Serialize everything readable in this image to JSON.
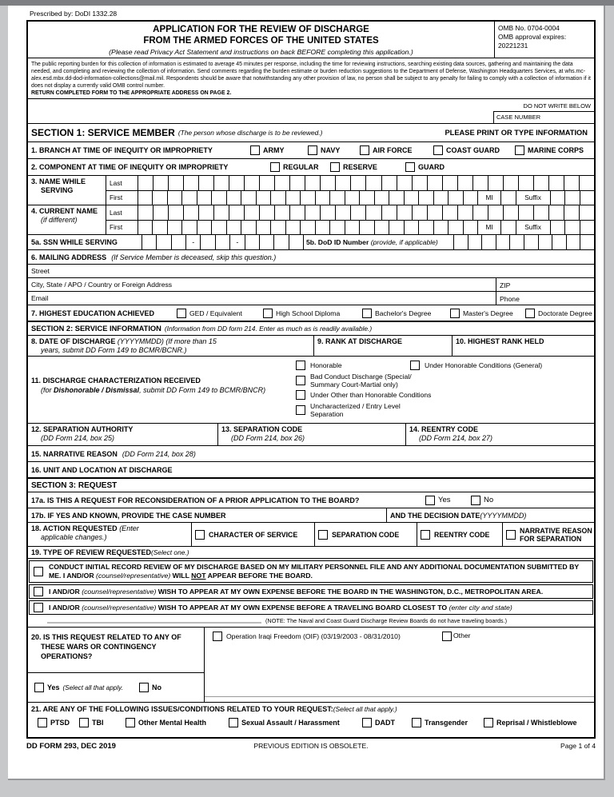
{
  "colors": {
    "border": "#000000",
    "page_bg": "#ffffff",
    "backdrop": "#c7c8ca",
    "topbar": "#7d7f82",
    "blank_line": "#b9bcbe"
  },
  "page": {
    "prescribed_by": "Prescribed by: DoDI 1332.28",
    "do_not_write": "DO NOT WRITE BELOW",
    "case_number_label": "CASE NUMBER",
    "footer": {
      "form_id": "DD FORM 293, DEC 2019",
      "edition": "PREVIOUS EDITION IS OBSOLETE.",
      "page_num": "Page 1 of 4"
    }
  },
  "header": {
    "title1": "APPLICATION FOR THE REVIEW OF DISCHARGE",
    "title2": "FROM THE ARMED FORCES OF THE UNITED STATES",
    "title3": "(Please read Privacy Act Statement and instructions on back BEFORE completing this application.)",
    "omb_no": "OMB No. 0704-0004",
    "omb_expires_label": "OMB approval expires:",
    "omb_expires_value": "20221231"
  },
  "burden": {
    "text": "The public reporting burden for this collection of information is estimated to average 45 minutes per response, including the time for reviewing instructions, searching existing data sources, gathering and maintaining the data needed, and completing and reviewing the collection of information.  Send comments regarding the burden estimate or burden reduction suggestions to the Department of Defense, Washington Headquarters Services, at whs.mc-alex.esd.mbx.dd-dod-information-collections@mail.mil. Respondents should be aware that notwithstanding any other provision of law, no person shall be subject to any penalty for failing to comply with a collection of information if it does not display a currently valid OMB control number.",
    "return_line": "RETURN COMPLETED FORM TO THE APPROPRIATE ADDRESS ON PAGE 2."
  },
  "section1": {
    "title": "SECTION 1: SERVICE MEMBER",
    "subtitle": "(The person whose discharge is to be reviewed.)",
    "print_note": "PLEASE PRINT OR TYPE INFORMATION",
    "q1_label": "1. BRANCH AT TIME OF INEQUITY OR IMPROPRIETY",
    "q1_options": [
      "ARMY",
      "NAVY",
      "AIR FORCE",
      "COAST GUARD",
      "MARINE CORPS"
    ],
    "q2_label": "2. COMPONENT AT TIME OF INEQUITY OR IMPROPRIETY",
    "q2_options": [
      "REGULAR",
      "RESERVE",
      "GUARD"
    ],
    "q3_label1": "3. NAME WHILE",
    "q3_label2": "SERVING",
    "q4_label": "4. CURRENT NAME",
    "q4_sublabel": "(if different)",
    "last_label": "Last",
    "first_label": "First",
    "mi_label": "MI",
    "suffix_label": "Suffix",
    "q5a_label": "5a. SSN WHILE SERVING",
    "ssn_separator": "-",
    "q5b_label": "5b. DoD ID Number",
    "q5b_sublabel": "(provide, if applicable)",
    "q6_label": "6. MAILING ADDRESS",
    "q6_sublabel": "(If Service Member is deceased, skip this question.)",
    "street_label": "Street",
    "city_label": "City, State / APO / Country or Foreign Address",
    "zip_label": "ZIP",
    "email_label": "Email",
    "phone_label": "Phone",
    "q7_label": "7. HIGHEST EDUCATION ACHIEVED",
    "q7_options": [
      "GED / Equivalent",
      "High School Diploma",
      "Bachelor's Degree",
      "Master's Degree",
      "Doctorate Degree"
    ]
  },
  "section2": {
    "title": "SECTION 2: SERVICE INFORMATION",
    "subtitle": "(Information from DD form 214. Enter as much as is readily available.)",
    "q8_label": "8. DATE OF DISCHARGE",
    "q8_sub1": "(YYYYMMDD) (If more than 15",
    "q8_sub2": "years, submit DD Form 149 to BCMR/BCNR.)",
    "q9_label": "9. RANK AT DISCHARGE",
    "q10_label": "10. HIGHEST RANK HELD",
    "q11_label": "11. DISCHARGE CHARACTERIZATION RECEIVED",
    "q11_sub_pre": "(for ",
    "q11_sub_bold": "Dishonorable / Dismissal",
    "q11_sub_post": ", submit DD Form 149 to BCMR/BNCR)",
    "q11_opt1": "Honorable",
    "q11_opt2": "Under Honorable Conditions (General)",
    "q11_opt3a": "Bad Conduct Discharge (Special/",
    "q11_opt3b": "Summary Court-Martial only)",
    "q11_opt4": "Under Other than Honorable Conditions",
    "q11_opt5a": "Uncharacterized / Entry Level",
    "q11_opt5b": "Separation",
    "q12_label": "12. SEPARATION AUTHORITY",
    "q12_sub": "(DD Form 214, box 25)",
    "q13_label": "13. SEPARATION CODE",
    "q13_sub": "(DD Form 214, box 26)",
    "q14_label": "14. REENTRY CODE",
    "q14_sub": "(DD Form 214, box 27)",
    "q15_label": "15. NARRATIVE REASON",
    "q15_sub": "(DD Form 214, box 28)",
    "q16_label": "16. UNIT AND LOCATION AT DISCHARGE"
  },
  "section3": {
    "title": "SECTION 3: REQUEST",
    "q17a_label": "17a. IS THIS A REQUEST FOR RECONSIDERATION OF A PRIOR APPLICATION TO THE BOARD?",
    "yes": "Yes",
    "no": "No",
    "q17b_label": "17b. IF YES AND KNOWN, PROVIDE THE CASE NUMBER",
    "q17b_right_bold": "AND THE DECISION DATE ",
    "q17b_right_italic": "(YYYYMMDD)",
    "q18_label": "18. ACTION REQUESTED ",
    "q18_sub1": "(Enter",
    "q18_sub2": "applicable changes.)",
    "q18_opt1": "CHARACTER OF SERVICE",
    "q18_opt2": "SEPARATION CODE",
    "q18_opt3": "REENTRY CODE",
    "q18_opt4a": "NARRATIVE REASON",
    "q18_opt4b": "FOR SEPARATION",
    "q19_label": "19. TYPE OF REVIEW REQUESTED ",
    "q19_sub": "(Select one.)",
    "q19_opt1_p1": "CONDUCT INITIAL RECORD REVIEW OF MY DISCHARGE BASED ON MY MILITARY PERSONNEL FILE AND ANY ADDITIONAL DOCUMENTATION SUBMITTED BY ME.  I AND/OR ",
    "counsel": "(counsel/representative)",
    "q19_opt1_p2": " WILL ",
    "q19_opt1_not": "NOT",
    "q19_opt1_p3": " APPEAR BEFORE THE BOARD.",
    "q19_opt23_p1": "I AND/OR ",
    "q19_opt2_p2": " WISH TO APPEAR AT MY OWN EXPENSE BEFORE THE BOARD IN THE WASHINGTON, D.C., METROPOLITAN AREA.",
    "q19_opt3_p2": " WISH TO APPEAR AT MY OWN EXPENSE BEFORE A TRAVELING BOARD CLOSEST TO ",
    "q19_opt3_p3": "(enter city and state)",
    "q19_note": "(NOTE: The Naval and Coast Guard Discharge Review Boards do not have traveling boards.)",
    "q20_l1": "20. IS THIS REQUEST RELATED TO ANY OF",
    "q20_l2": "THESE WARS OR CONTINGENCY",
    "q20_l3": "OPERATIONS?",
    "q20_oif": "Operation Iraqi Freedom (OIF) (03/19/2003 - 08/31/2010)",
    "q20_other": "Other",
    "q20_yes": "Yes",
    "q20_yes_note": "(Select all that apply.",
    "q20_no": "No",
    "q21_label": "21. ARE ANY OF THE FOLLOWING ISSUES/CONDITIONS RELATED TO YOUR REQUEST: ",
    "q21_sub": "(Select all that apply.)",
    "q21_options": [
      "PTSD",
      "TBI",
      "Other Mental Health",
      "Sexual Assault / Harassment",
      "DADT",
      "Transgender",
      "Reprisal / Whistleblowe"
    ]
  }
}
